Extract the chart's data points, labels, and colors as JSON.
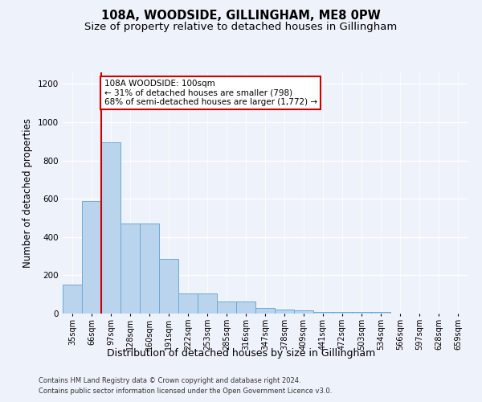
{
  "title": "108A, WOODSIDE, GILLINGHAM, ME8 0PW",
  "subtitle": "Size of property relative to detached houses in Gillingham",
  "xlabel": "Distribution of detached houses by size in Gillingham",
  "ylabel": "Number of detached properties",
  "categories": [
    "35sqm",
    "66sqm",
    "97sqm",
    "128sqm",
    "160sqm",
    "191sqm",
    "222sqm",
    "253sqm",
    "285sqm",
    "316sqm",
    "347sqm",
    "378sqm",
    "409sqm",
    "441sqm",
    "472sqm",
    "503sqm",
    "534sqm",
    "566sqm",
    "597sqm",
    "628sqm",
    "659sqm"
  ],
  "values": [
    150,
    590,
    893,
    470,
    470,
    285,
    105,
    105,
    63,
    63,
    28,
    20,
    15,
    10,
    10,
    7,
    7,
    0,
    0,
    0,
    0
  ],
  "bar_color": "#bad4ee",
  "bar_edge_color": "#6aaad4",
  "vline_color": "#cc0000",
  "annotation_text": "108A WOODSIDE: 100sqm\n← 31% of detached houses are smaller (798)\n68% of semi-detached houses are larger (1,772) →",
  "annotation_box_color": "#ffffff",
  "annotation_box_edge_color": "#cc0000",
  "ylim": [
    0,
    1260
  ],
  "footer1": "Contains HM Land Registry data © Crown copyright and database right 2024.",
  "footer2": "Contains public sector information licensed under the Open Government Licence v3.0.",
  "bg_color": "#eef2fa",
  "grid_color": "#ffffff",
  "title_fontsize": 10.5,
  "subtitle_fontsize": 9.5,
  "xlabel_fontsize": 9,
  "ylabel_fontsize": 8.5,
  "tick_fontsize": 7,
  "footer_fontsize": 6,
  "annot_fontsize": 7.5
}
